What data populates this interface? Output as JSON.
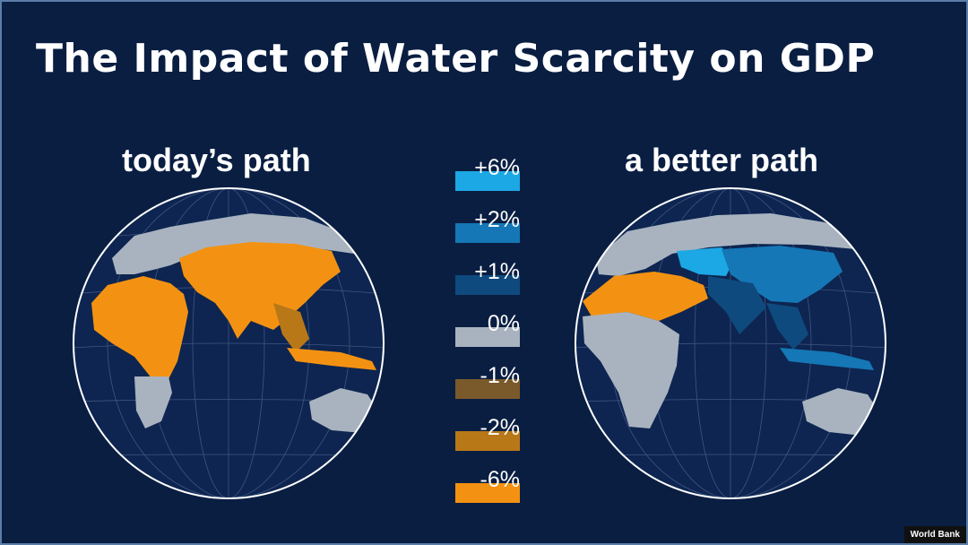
{
  "title": "The Impact of Water Scarcity on GDP",
  "maps": {
    "left": {
      "label": "today’s path"
    },
    "right": {
      "label": "a better path"
    }
  },
  "legend": [
    {
      "label": "+6%",
      "color": "#1ca8e4"
    },
    {
      "label": "+2%",
      "color": "#1577b5"
    },
    {
      "label": "+1%",
      "color": "#0f4a7e"
    },
    {
      "label": "0%",
      "color": "#a9b3c0"
    },
    {
      "label": "-1%",
      "color": "#7a5a2a"
    },
    {
      "label": "-2%",
      "color": "#b87818"
    },
    {
      "label": "-6%",
      "color": "#f39212"
    }
  ],
  "credit": "World Bank"
}
